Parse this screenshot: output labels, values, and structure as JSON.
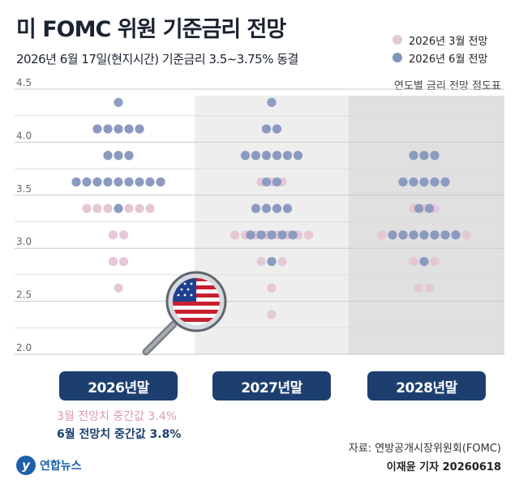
{
  "title": "미 FOMC 위원 기준금리 전망",
  "subtitle": "2026년 6월 17일(현지시간) 기준금리 3.5~3.75% 동결",
  "chart_note": "연도별 금리 전망 점도표",
  "colors": {
    "march": "#e5c7d6",
    "june": "#8195bd",
    "overlap": "#9eaad0",
    "button": "#1c3f70",
    "band": "#eeeeee",
    "band_dark": "#e0e0e0"
  },
  "buttons": {
    "y2026": "2026년말",
    "y2027": "2027년말",
    "y2028": "2028년말"
  },
  "medians": {
    "march": "3월 전망치 중간값 3.4%",
    "june": "6월 전망치 중간값 3.8%"
  },
  "source": "자료: 연방공개시장위원회(FOMC)",
  "byline": "이재윤 기자 20260618",
  "logo": {
    "mark": "y",
    "text": "연합뉴스"
  },
  "flag_icon": "us-flag-magnifier-icon",
  "chart_data": {
    "type": "scatter",
    "title": "미 FOMC 위원 기준금리 전망",
    "ylabel": "",
    "ylim": [
      2.0,
      4.5
    ],
    "yticks": [
      "2.0",
      "2.5",
      "3.0",
      "3.5",
      "4.0",
      "4.5"
    ],
    "categories": [
      "2026년말",
      "2027년말",
      "2028년말"
    ],
    "series": [
      {
        "name": "2026년 3월 전망",
        "rows": [
          [
            [
              4.125,
              5
            ],
            [
              3.875,
              3
            ],
            [
              3.625,
              9
            ],
            [
              3.375,
              7
            ],
            [
              3.125,
              2
            ],
            [
              2.875,
              2
            ],
            [
              2.625,
              1
            ]
          ],
          [
            [
              4.125,
              2
            ],
            [
              3.875,
              6
            ],
            [
              3.625,
              3
            ],
            [
              3.375,
              4
            ],
            [
              3.125,
              8
            ],
            [
              2.875,
              3
            ],
            [
              2.625,
              1
            ],
            [
              2.375,
              1
            ]
          ],
          [
            [
              3.875,
              3
            ],
            [
              3.625,
              5
            ],
            [
              3.375,
              3
            ],
            [
              3.125,
              9
            ],
            [
              2.875,
              3
            ],
            [
              2.625,
              2
            ]
          ]
        ]
      },
      {
        "name": "2026년 6월 전망",
        "rows": [
          [
            [
              4.375,
              1
            ],
            [
              4.125,
              5
            ],
            [
              3.875,
              3
            ],
            [
              3.625,
              9
            ],
            [
              3.375,
              1
            ]
          ],
          [
            [
              4.375,
              1
            ],
            [
              4.125,
              2
            ],
            [
              3.875,
              6
            ],
            [
              3.625,
              2
            ],
            [
              3.375,
              4
            ],
            [
              3.125,
              5
            ],
            [
              2.875,
              1
            ]
          ],
          [
            [
              3.875,
              3
            ],
            [
              3.625,
              5
            ],
            [
              3.375,
              2
            ],
            [
              3.125,
              7
            ],
            [
              2.875,
              1
            ]
          ]
        ]
      }
    ]
  }
}
